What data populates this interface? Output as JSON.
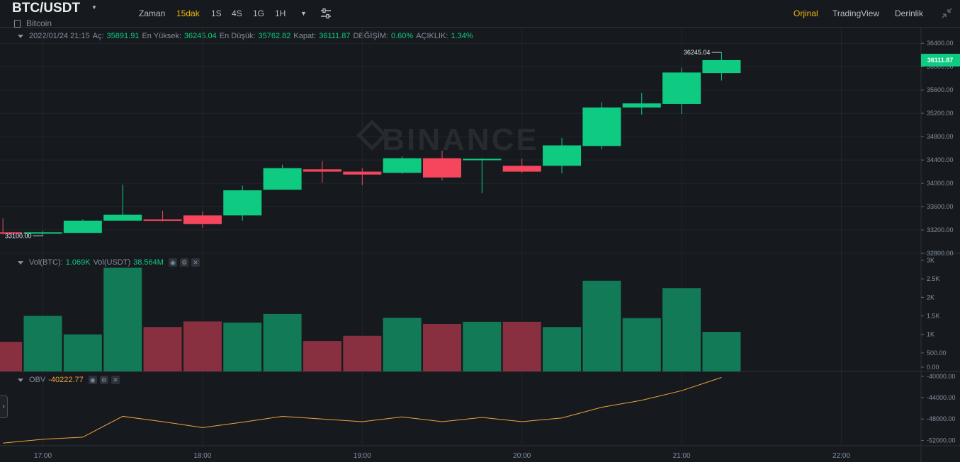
{
  "header": {
    "pair": "BTC/USDT",
    "coin": "Bitcoin",
    "intervals": [
      "Zaman",
      "15dak",
      "1S",
      "4S",
      "1G",
      "1H"
    ],
    "active_interval": "15dak",
    "views": [
      "Orjinal",
      "TradingView",
      "Derinlik"
    ],
    "active_view": "Orjinal"
  },
  "ohlc_legend": {
    "datetime": "2022/01/24 21:15",
    "open_label": "Aç:",
    "open": "35891.91",
    "high_label": "En Yüksek:",
    "high": "36245.04",
    "low_label": "En Düşük:",
    "low": "35762.82",
    "close_label": "Kapat:",
    "close": "36111.87",
    "change_label": "DEĞİŞİM:",
    "change": "0.60%",
    "amp_label": "AÇIKLIK:",
    "amp": "1.34%"
  },
  "vol_legend": {
    "btc_label": "Vol(BTC):",
    "btc": "1.069K",
    "usdt_label": "Vol(USDT)",
    "usdt": "38.564M"
  },
  "obv_legend": {
    "label": "OBV",
    "value": "-40222.77"
  },
  "watermark": "BINANCE",
  "colors": {
    "up": "#0ecb81",
    "down": "#f6465d",
    "vol_up": "#137a58",
    "vol_down": "#88303f",
    "obv": "#f0a23c",
    "accent": "#f0b90b"
  },
  "chart_data": [
    {
      "type": "candlestick",
      "x": [
        "16:45",
        "17:00",
        "17:15",
        "17:30",
        "17:45",
        "18:00",
        "18:15",
        "18:30",
        "18:45",
        "19:00",
        "19:15",
        "19:30",
        "19:45",
        "20:00",
        "20:15",
        "20:30",
        "20:45",
        "21:00",
        "21:15"
      ],
      "open": [
        33160,
        33140,
        33150,
        33360,
        33380,
        33450,
        33450,
        33890,
        34240,
        34200,
        34180,
        34430,
        34400,
        34300,
        34300,
        34640,
        35300,
        35360,
        35891.91
      ],
      "high": [
        33400,
        33180,
        33380,
        33980,
        33530,
        33520,
        33960,
        34320,
        34380,
        34260,
        34460,
        34560,
        34430,
        34420,
        34780,
        35390,
        35550,
        35980,
        36245.04
      ],
      "low": [
        33120,
        33100,
        33160,
        33390,
        33350,
        33240,
        33360,
        33890,
        34010,
        33970,
        34160,
        34050,
        33830,
        34180,
        34170,
        34580,
        35180,
        35190,
        35762.82
      ],
      "close": [
        33150,
        33160,
        33360,
        33460,
        33360,
        33300,
        33880,
        34260,
        34200,
        34150,
        34430,
        34100,
        34420,
        34200,
        34650,
        35300,
        35370,
        35900,
        36111.87
      ],
      "ylim": [
        32800,
        36500
      ],
      "yticks": [
        "32800.00",
        "33200.00",
        "33600.00",
        "34000.00",
        "34400.00",
        "34800.00",
        "35200.00",
        "35600.00",
        "36000.00",
        "36400.00"
      ],
      "xticks": [
        "17:00",
        "18:00",
        "19:00",
        "20:00",
        "21:00",
        "22:00"
      ],
      "high_marker": "36245.04",
      "low_marker": "33100.00",
      "last_price": "36111.87"
    },
    {
      "type": "bar",
      "name": "Vol(BTC)",
      "values": [
        800,
        1500,
        1000,
        2800,
        1200,
        1350,
        1320,
        1550,
        820,
        960,
        1450,
        1280,
        1340,
        1340,
        1200,
        2450,
        1440,
        2250,
        1069
      ],
      "direction": [
        "down",
        "up",
        "up",
        "up",
        "down",
        "down",
        "up",
        "up",
        "down",
        "down",
        "up",
        "down",
        "up",
        "down",
        "up",
        "up",
        "up",
        "up",
        "up"
      ],
      "ylim": [
        0,
        3000
      ],
      "yticks": [
        "0.00",
        "500.00",
        "1K",
        "1.5K",
        "2K",
        "2.5K",
        "3K"
      ]
    },
    {
      "type": "line",
      "name": "OBV",
      "values": [
        -52500,
        -51800,
        -51400,
        -47500,
        -48500,
        -49600,
        -48600,
        -47500,
        -48000,
        -48500,
        -47600,
        -48500,
        -47700,
        -48500,
        -47800,
        -45800,
        -44500,
        -42700,
        -40222.77
      ],
      "ylim": [
        -53000,
        -39500
      ],
      "yticks": [
        "-52000.00",
        "-48000.00",
        "-44000.00",
        "-40000.00"
      ]
    }
  ]
}
